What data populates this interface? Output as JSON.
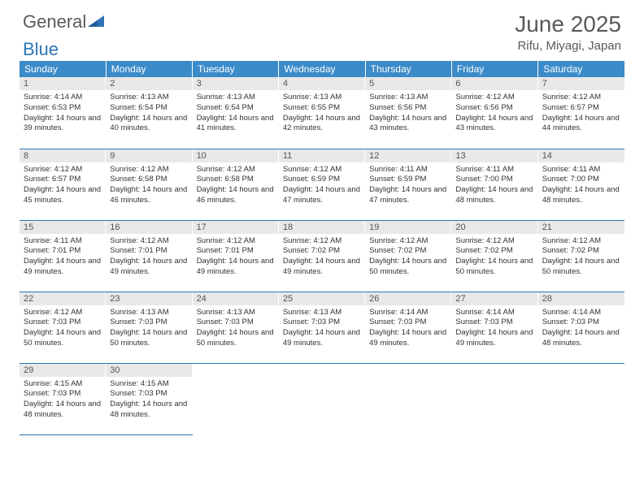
{
  "brand": {
    "part1": "General",
    "part2": "Blue"
  },
  "title": "June 2025",
  "location": "Rifu, Miyagi, Japan",
  "colors": {
    "header_bg": "#3b8bc9",
    "border": "#2e75b6",
    "daynum_bg": "#e8e8e8",
    "text": "#333333",
    "title_text": "#595959"
  },
  "weekdays": [
    "Sunday",
    "Monday",
    "Tuesday",
    "Wednesday",
    "Thursday",
    "Friday",
    "Saturday"
  ],
  "weeks": [
    [
      {
        "day": "1",
        "sunrise": "4:14 AM",
        "sunset": "6:53 PM",
        "daylight": "14 hours and 39 minutes."
      },
      {
        "day": "2",
        "sunrise": "4:13 AM",
        "sunset": "6:54 PM",
        "daylight": "14 hours and 40 minutes."
      },
      {
        "day": "3",
        "sunrise": "4:13 AM",
        "sunset": "6:54 PM",
        "daylight": "14 hours and 41 minutes."
      },
      {
        "day": "4",
        "sunrise": "4:13 AM",
        "sunset": "6:55 PM",
        "daylight": "14 hours and 42 minutes."
      },
      {
        "day": "5",
        "sunrise": "4:13 AM",
        "sunset": "6:56 PM",
        "daylight": "14 hours and 43 minutes."
      },
      {
        "day": "6",
        "sunrise": "4:12 AM",
        "sunset": "6:56 PM",
        "daylight": "14 hours and 43 minutes."
      },
      {
        "day": "7",
        "sunrise": "4:12 AM",
        "sunset": "6:57 PM",
        "daylight": "14 hours and 44 minutes."
      }
    ],
    [
      {
        "day": "8",
        "sunrise": "4:12 AM",
        "sunset": "6:57 PM",
        "daylight": "14 hours and 45 minutes."
      },
      {
        "day": "9",
        "sunrise": "4:12 AM",
        "sunset": "6:58 PM",
        "daylight": "14 hours and 46 minutes."
      },
      {
        "day": "10",
        "sunrise": "4:12 AM",
        "sunset": "6:58 PM",
        "daylight": "14 hours and 46 minutes."
      },
      {
        "day": "11",
        "sunrise": "4:12 AM",
        "sunset": "6:59 PM",
        "daylight": "14 hours and 47 minutes."
      },
      {
        "day": "12",
        "sunrise": "4:11 AM",
        "sunset": "6:59 PM",
        "daylight": "14 hours and 47 minutes."
      },
      {
        "day": "13",
        "sunrise": "4:11 AM",
        "sunset": "7:00 PM",
        "daylight": "14 hours and 48 minutes."
      },
      {
        "day": "14",
        "sunrise": "4:11 AM",
        "sunset": "7:00 PM",
        "daylight": "14 hours and 48 minutes."
      }
    ],
    [
      {
        "day": "15",
        "sunrise": "4:11 AM",
        "sunset": "7:01 PM",
        "daylight": "14 hours and 49 minutes."
      },
      {
        "day": "16",
        "sunrise": "4:12 AM",
        "sunset": "7:01 PM",
        "daylight": "14 hours and 49 minutes."
      },
      {
        "day": "17",
        "sunrise": "4:12 AM",
        "sunset": "7:01 PM",
        "daylight": "14 hours and 49 minutes."
      },
      {
        "day": "18",
        "sunrise": "4:12 AM",
        "sunset": "7:02 PM",
        "daylight": "14 hours and 49 minutes."
      },
      {
        "day": "19",
        "sunrise": "4:12 AM",
        "sunset": "7:02 PM",
        "daylight": "14 hours and 50 minutes."
      },
      {
        "day": "20",
        "sunrise": "4:12 AM",
        "sunset": "7:02 PM",
        "daylight": "14 hours and 50 minutes."
      },
      {
        "day": "21",
        "sunrise": "4:12 AM",
        "sunset": "7:02 PM",
        "daylight": "14 hours and 50 minutes."
      }
    ],
    [
      {
        "day": "22",
        "sunrise": "4:12 AM",
        "sunset": "7:03 PM",
        "daylight": "14 hours and 50 minutes."
      },
      {
        "day": "23",
        "sunrise": "4:13 AM",
        "sunset": "7:03 PM",
        "daylight": "14 hours and 50 minutes."
      },
      {
        "day": "24",
        "sunrise": "4:13 AM",
        "sunset": "7:03 PM",
        "daylight": "14 hours and 50 minutes."
      },
      {
        "day": "25",
        "sunrise": "4:13 AM",
        "sunset": "7:03 PM",
        "daylight": "14 hours and 49 minutes."
      },
      {
        "day": "26",
        "sunrise": "4:14 AM",
        "sunset": "7:03 PM",
        "daylight": "14 hours and 49 minutes."
      },
      {
        "day": "27",
        "sunrise": "4:14 AM",
        "sunset": "7:03 PM",
        "daylight": "14 hours and 49 minutes."
      },
      {
        "day": "28",
        "sunrise": "4:14 AM",
        "sunset": "7:03 PM",
        "daylight": "14 hours and 48 minutes."
      }
    ],
    [
      {
        "day": "29",
        "sunrise": "4:15 AM",
        "sunset": "7:03 PM",
        "daylight": "14 hours and 48 minutes."
      },
      {
        "day": "30",
        "sunrise": "4:15 AM",
        "sunset": "7:03 PM",
        "daylight": "14 hours and 48 minutes."
      },
      null,
      null,
      null,
      null,
      null
    ]
  ],
  "labels": {
    "sunrise": "Sunrise:",
    "sunset": "Sunset:",
    "daylight": "Daylight:"
  }
}
